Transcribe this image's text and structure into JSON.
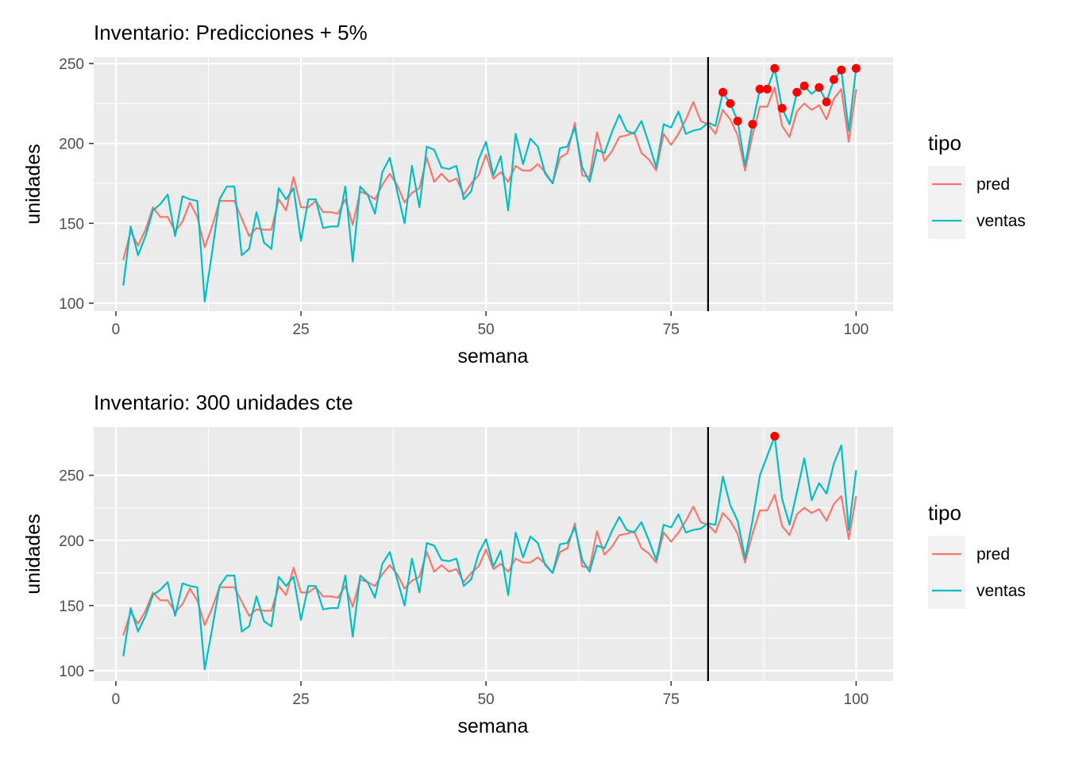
{
  "chart_data": [
    {
      "type": "line",
      "title": "Inventario: Predicciones + 5%",
      "xlabel": "semana",
      "ylabel": "unidades",
      "xlim": [
        -3,
        105
      ],
      "ylim": [
        95,
        254
      ],
      "xticks": [
        0,
        25,
        50,
        75,
        100
      ],
      "yticks": [
        100,
        150,
        200,
        250
      ],
      "grid": true,
      "legend": {
        "title": "tipo",
        "position": "right",
        "entries": [
          "pred",
          "ventas"
        ]
      },
      "vline_x": 80,
      "series": [
        {
          "name": "pred",
          "color": "#F8766D",
          "x": [
            1,
            2,
            3,
            4,
            5,
            6,
            7,
            8,
            9,
            10,
            11,
            12,
            13,
            14,
            15,
            16,
            17,
            18,
            19,
            20,
            21,
            22,
            23,
            24,
            25,
            26,
            27,
            28,
            29,
            30,
            31,
            32,
            33,
            34,
            35,
            36,
            37,
            38,
            39,
            40,
            41,
            42,
            43,
            44,
            45,
            46,
            47,
            48,
            49,
            50,
            51,
            52,
            53,
            54,
            55,
            56,
            57,
            58,
            59,
            60,
            61,
            62,
            63,
            64,
            65,
            66,
            67,
            68,
            69,
            70,
            71,
            72,
            73,
            74,
            75,
            76,
            77,
            78,
            79,
            80,
            81,
            82,
            83,
            84,
            85,
            86,
            87,
            88,
            89,
            90,
            91,
            92,
            93,
            94,
            95,
            96,
            97,
            98,
            99,
            100
          ],
          "y": [
            127,
            145,
            136,
            146,
            160,
            154,
            154,
            145,
            151,
            163,
            154,
            135,
            148,
            164,
            164,
            164,
            153,
            142,
            147,
            146,
            146,
            165,
            158,
            179,
            160,
            160,
            164,
            157,
            157,
            156,
            165,
            149,
            170,
            168,
            165,
            174,
            181,
            174,
            163,
            169,
            172,
            191,
            176,
            181,
            176,
            178,
            168,
            175,
            180,
            193,
            178,
            182,
            176,
            186,
            183,
            183,
            187,
            182,
            175,
            191,
            194,
            213,
            180,
            179,
            207,
            189,
            195,
            204,
            205,
            207,
            194,
            190,
            183,
            206,
            199,
            206,
            215,
            226,
            214,
            212,
            206,
            221,
            215,
            205,
            183,
            205,
            223,
            223,
            235,
            211,
            204,
            220,
            225,
            221,
            224,
            215,
            228,
            234,
            201,
            234
          ]
        },
        {
          "name": "ventas",
          "color": "#00BFC4",
          "x": [
            1,
            2,
            3,
            4,
            5,
            6,
            7,
            8,
            9,
            10,
            11,
            12,
            13,
            14,
            15,
            16,
            17,
            18,
            19,
            20,
            21,
            22,
            23,
            24,
            25,
            26,
            27,
            28,
            29,
            30,
            31,
            32,
            33,
            34,
            35,
            36,
            37,
            38,
            39,
            40,
            41,
            42,
            43,
            44,
            45,
            46,
            47,
            48,
            49,
            50,
            51,
            52,
            53,
            54,
            55,
            56,
            57,
            58,
            59,
            60,
            61,
            62,
            63,
            64,
            65,
            66,
            67,
            68,
            69,
            70,
            71,
            72,
            73,
            74,
            75,
            76,
            77,
            78,
            79,
            80,
            81,
            82,
            83,
            84,
            85,
            86,
            87,
            88,
            89,
            90,
            91,
            92,
            93,
            94,
            95,
            96,
            97,
            98,
            99,
            100
          ],
          "y": [
            111,
            148,
            130,
            142,
            158,
            162,
            168,
            142,
            167,
            165,
            164,
            101,
            132,
            165,
            173,
            173,
            130,
            134,
            157,
            138,
            134,
            172,
            165,
            172,
            139,
            165,
            165,
            147,
            148,
            148,
            173,
            126,
            173,
            168,
            156,
            182,
            191,
            170,
            150,
            186,
            160,
            198,
            196,
            185,
            184,
            186,
            165,
            170,
            190,
            201,
            180,
            192,
            158,
            206,
            187,
            203,
            198,
            181,
            175,
            197,
            198,
            210,
            185,
            176,
            196,
            194,
            207,
            218,
            208,
            206,
            214,
            200,
            185,
            212,
            210,
            220,
            206,
            208,
            209,
            213,
            211,
            232,
            225,
            214,
            186,
            212,
            234,
            234,
            247,
            222,
            212,
            232,
            236,
            231,
            235,
            226,
            240,
            246,
            208,
            247
          ]
        }
      ],
      "highlight_points": {
        "color": "#FF0000",
        "x": [
          82,
          83,
          84,
          86,
          87,
          88,
          89,
          90,
          92,
          93,
          95,
          96,
          97,
          98,
          100
        ],
        "y": [
          232,
          225,
          214,
          212,
          234,
          234,
          247,
          222,
          232,
          236,
          235,
          226,
          240,
          246,
          247
        ]
      }
    },
    {
      "type": "line",
      "title": "Inventario: 300 unidades cte",
      "xlabel": "semana",
      "ylabel": "unidades",
      "xlim": [
        -3,
        105
      ],
      "ylim": [
        92,
        287
      ],
      "xticks": [
        0,
        25,
        50,
        75,
        100
      ],
      "yticks": [
        100,
        150,
        200,
        250
      ],
      "grid": true,
      "legend": {
        "title": "tipo",
        "position": "right",
        "entries": [
          "pred",
          "ventas"
        ]
      },
      "vline_x": 80,
      "series": [
        {
          "name": "pred",
          "color": "#F8766D",
          "x": [
            1,
            2,
            3,
            4,
            5,
            6,
            7,
            8,
            9,
            10,
            11,
            12,
            13,
            14,
            15,
            16,
            17,
            18,
            19,
            20,
            21,
            22,
            23,
            24,
            25,
            26,
            27,
            28,
            29,
            30,
            31,
            32,
            33,
            34,
            35,
            36,
            37,
            38,
            39,
            40,
            41,
            42,
            43,
            44,
            45,
            46,
            47,
            48,
            49,
            50,
            51,
            52,
            53,
            54,
            55,
            56,
            57,
            58,
            59,
            60,
            61,
            62,
            63,
            64,
            65,
            66,
            67,
            68,
            69,
            70,
            71,
            72,
            73,
            74,
            75,
            76,
            77,
            78,
            79,
            80,
            81,
            82,
            83,
            84,
            85,
            86,
            87,
            88,
            89,
            90,
            91,
            92,
            93,
            94,
            95,
            96,
            97,
            98,
            99,
            100
          ],
          "y": [
            127,
            145,
            136,
            146,
            160,
            154,
            154,
            145,
            151,
            163,
            154,
            135,
            148,
            164,
            164,
            164,
            153,
            142,
            147,
            146,
            146,
            165,
            158,
            179,
            160,
            160,
            164,
            157,
            157,
            156,
            165,
            149,
            170,
            168,
            165,
            174,
            181,
            174,
            163,
            169,
            172,
            191,
            176,
            181,
            176,
            178,
            168,
            175,
            180,
            193,
            178,
            182,
            176,
            186,
            183,
            183,
            187,
            182,
            175,
            191,
            194,
            213,
            180,
            179,
            207,
            189,
            195,
            204,
            205,
            207,
            194,
            190,
            183,
            206,
            199,
            206,
            215,
            226,
            214,
            212,
            206,
            221,
            215,
            205,
            183,
            205,
            223,
            223,
            235,
            211,
            204,
            220,
            225,
            221,
            224,
            215,
            228,
            234,
            201,
            234
          ]
        },
        {
          "name": "ventas",
          "color": "#00BFC4",
          "x": [
            1,
            2,
            3,
            4,
            5,
            6,
            7,
            8,
            9,
            10,
            11,
            12,
            13,
            14,
            15,
            16,
            17,
            18,
            19,
            20,
            21,
            22,
            23,
            24,
            25,
            26,
            27,
            28,
            29,
            30,
            31,
            32,
            33,
            34,
            35,
            36,
            37,
            38,
            39,
            40,
            41,
            42,
            43,
            44,
            45,
            46,
            47,
            48,
            49,
            50,
            51,
            52,
            53,
            54,
            55,
            56,
            57,
            58,
            59,
            60,
            61,
            62,
            63,
            64,
            65,
            66,
            67,
            68,
            69,
            70,
            71,
            72,
            73,
            74,
            75,
            76,
            77,
            78,
            79,
            80,
            81,
            82,
            83,
            84,
            85,
            86,
            87,
            88,
            89,
            90,
            91,
            92,
            93,
            94,
            95,
            96,
            97,
            98,
            99,
            100
          ],
          "y": [
            111,
            148,
            130,
            142,
            158,
            162,
            168,
            142,
            167,
            165,
            164,
            101,
            132,
            165,
            173,
            173,
            130,
            134,
            157,
            138,
            134,
            172,
            165,
            172,
            139,
            165,
            165,
            147,
            148,
            148,
            173,
            126,
            173,
            168,
            156,
            182,
            191,
            170,
            150,
            186,
            160,
            198,
            196,
            185,
            184,
            186,
            165,
            170,
            190,
            201,
            180,
            192,
            158,
            206,
            187,
            203,
            198,
            181,
            175,
            197,
            198,
            210,
            185,
            176,
            196,
            194,
            207,
            218,
            208,
            206,
            214,
            200,
            185,
            212,
            210,
            220,
            206,
            208,
            209,
            213,
            212,
            249,
            227,
            215,
            186,
            215,
            250,
            265,
            280,
            232,
            212,
            237,
            263,
            231,
            244,
            236,
            259,
            273,
            208,
            254
          ]
        }
      ],
      "highlight_points": {
        "color": "#FF0000",
        "x": [
          89
        ],
        "y": [
          280
        ]
      }
    }
  ]
}
